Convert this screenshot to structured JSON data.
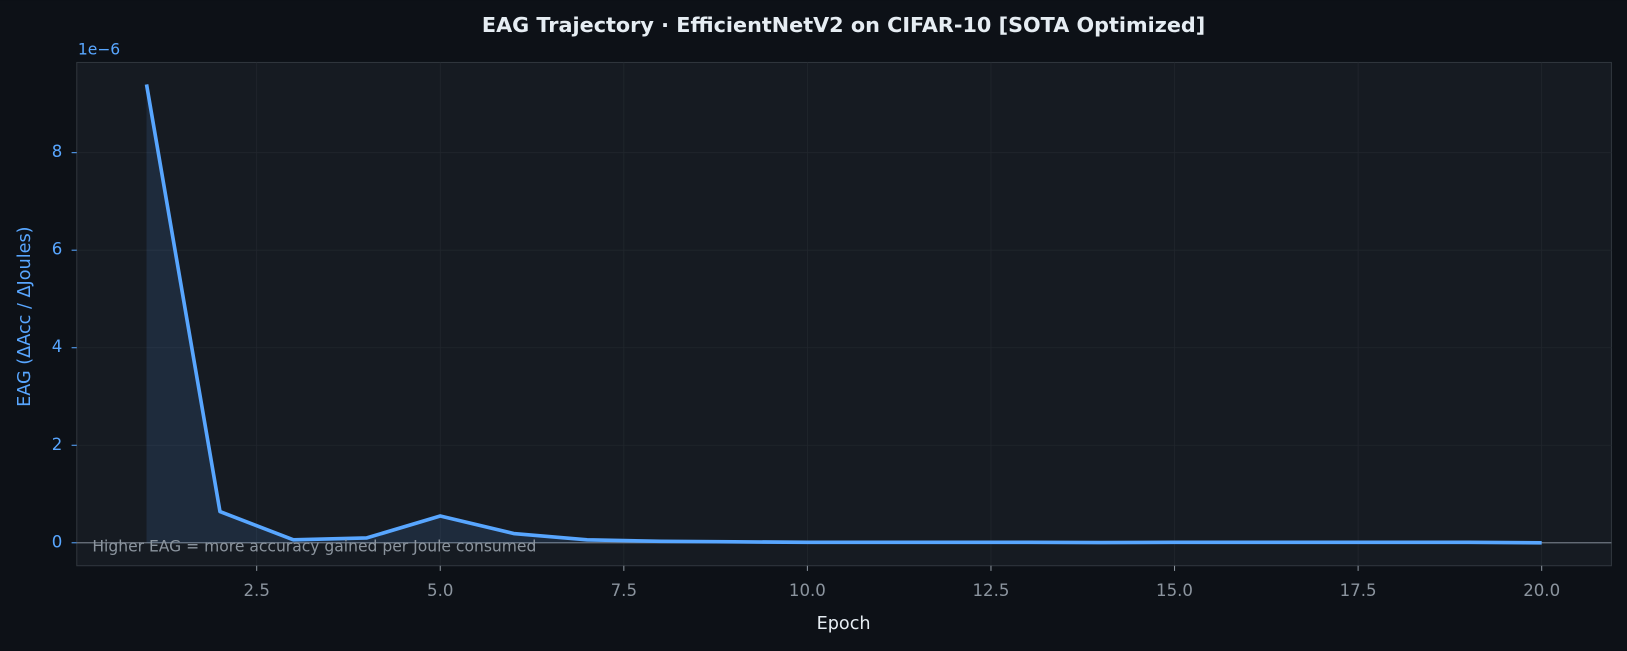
{
  "chart_data": {
    "type": "line",
    "title": "EAG Trajectory  ·  EfficientNetV2 on CIFAR-10  [SOTA Optimized]",
    "x_label": "Epoch",
    "y_label": "EAG  (ΔAcc / ΔJoules)",
    "y_offset_label": "1e−6",
    "annotation": "Higher EAG = more accuracy gained per Joule consumed",
    "x": [
      1,
      2,
      3,
      4,
      5,
      6,
      7,
      8,
      9,
      10,
      11,
      12,
      13,
      14,
      15,
      16,
      17,
      18,
      19,
      20
    ],
    "series": [
      {
        "name": "EAG",
        "color": "#58a6ff",
        "values": [
          9.4,
          0.64,
          0.06,
          0.1,
          0.55,
          0.19,
          0.06,
          0.03,
          0.02,
          0.01,
          0.01,
          0.01,
          0.01,
          0.005,
          0.01,
          0.01,
          0.01,
          0.01,
          0.01,
          0.0
        ]
      }
    ],
    "xlim": [
      0.05,
      20.95
    ],
    "ylim": [
      -0.47,
      9.85
    ],
    "xticks": [
      2.5,
      {
        "value": 5,
        "label": "5.0"
      },
      7.5,
      {
        "value": 10,
        "label": "10.0"
      },
      12.5,
      {
        "value": 15,
        "label": "15.0"
      },
      17.5,
      {
        "value": 20,
        "label": "20.0"
      }
    ],
    "yticks": [
      0,
      2,
      4,
      6,
      8
    ],
    "grid": true
  }
}
